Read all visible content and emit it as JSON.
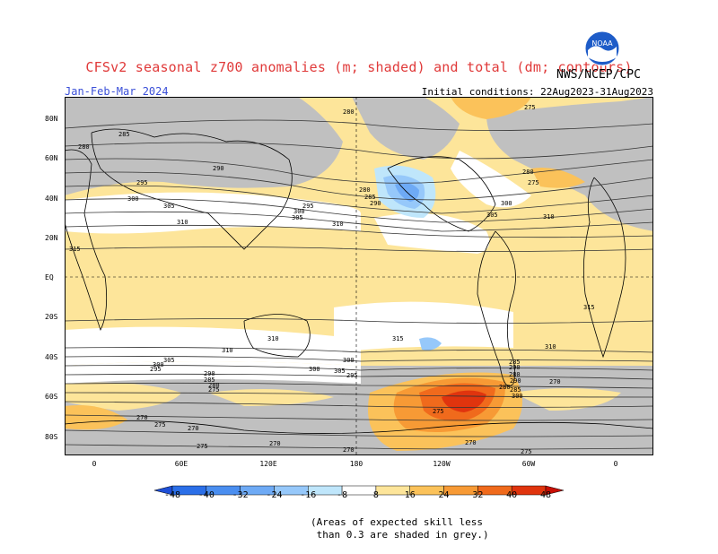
{
  "header": {
    "title": "CFSv2 seasonal z700 anomalies (m; shaded) and total (dm; contours)",
    "season": "Jan-Feb-Mar 2024",
    "initial_conditions": "Initial conditions: 22Aug2023-31Aug2023",
    "agency": "NWS/NCEP/CPC",
    "logo_text": "NOAA"
  },
  "map": {
    "lat_labels": [
      "80N",
      "60N",
      "40N",
      "20N",
      "EQ",
      "20S",
      "40S",
      "60S",
      "80S"
    ],
    "lon_labels": [
      "0",
      "60E",
      "120E",
      "180",
      "120W",
      "60W",
      "0"
    ],
    "contour_labels": [
      "280",
      "275",
      "285",
      "280",
      "290",
      "295",
      "300",
      "305",
      "310",
      "315",
      "280",
      "285",
      "290",
      "295",
      "300",
      "305",
      "310",
      "315",
      "310",
      "315",
      "310",
      "300",
      "305",
      "295",
      "290",
      "285",
      "280",
      "275",
      "270",
      "275",
      "270",
      "275",
      "310",
      "300",
      "305",
      "300",
      "295",
      "285",
      "290",
      "280",
      "275",
      "270",
      "270",
      "275",
      "270",
      "290",
      "280",
      "285",
      "300",
      "305",
      "310",
      "300",
      "280",
      "275",
      "270"
    ]
  },
  "colorbar": {
    "ticks": [
      "-48",
      "-40",
      "-32",
      "-24",
      "-16",
      "-8",
      "8",
      "16",
      "24",
      "32",
      "40",
      "48"
    ],
    "colors": [
      "#1e4fd6",
      "#2b6fe8",
      "#4a8ef0",
      "#6eaaf5",
      "#96c8fa",
      "#bfe6fb",
      "#ffffff",
      "#fde59a",
      "#fbc25a",
      "#f79a35",
      "#f06a1c",
      "#e0340e",
      "#c80f05"
    ]
  },
  "footnote": "(Areas of expected skill less\n than 0.3 are shaded in grey.)"
}
